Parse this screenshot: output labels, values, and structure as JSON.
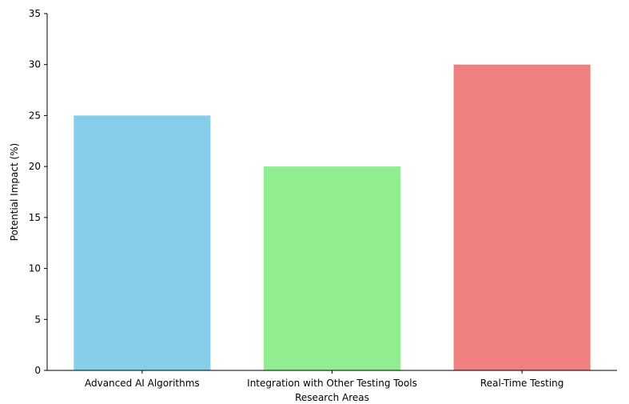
{
  "chart_data": {
    "type": "bar",
    "categories": [
      "Advanced AI Algorithms",
      "Integration with Other Testing Tools",
      "Real-Time Testing"
    ],
    "values": [
      25,
      20,
      30
    ],
    "colors": [
      "#87ceeb",
      "#90ee90",
      "#f08080"
    ],
    "xlabel": "Research Areas",
    "ylabel": "Potential Impact (%)",
    "ylim": [
      0,
      35
    ],
    "yticks": [
      0,
      5,
      10,
      15,
      20,
      25,
      30,
      35
    ],
    "grid": false,
    "spines": "left-bottom"
  }
}
